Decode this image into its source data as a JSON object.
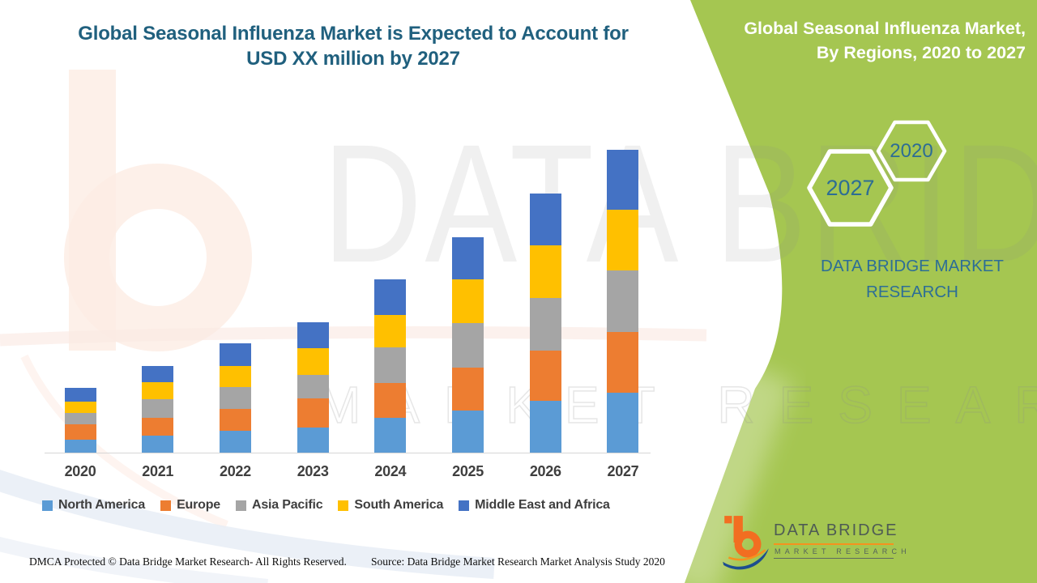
{
  "title": {
    "line1": "Global Seasonal Influenza Market is Expected to Account for",
    "line2": "USD XX million by 2027"
  },
  "side_panel": {
    "heading_line1": "Global Seasonal Influenza Market,",
    "heading_line2": "By Regions, 2020 to 2027",
    "hexagon_large_label": "2027",
    "hexagon_small_label": "2020",
    "brand_line1": "DATA BRIDGE MARKET",
    "brand_line2": "RESEARCH"
  },
  "logo": {
    "title": "DATA BRIDGE",
    "subtitle": "MARKET RESEARCH"
  },
  "watermark": {
    "line1": "DATA BRIDGE",
    "line2": "MARKET RESEARCH"
  },
  "footer": {
    "dmca": "DMCA Protected © Data Bridge Market Research- All Rights Reserved.",
    "source": "Source: Data Bridge Market Research Market Analysis Study 2020"
  },
  "colors": {
    "panel_green": "#a5c651",
    "title_teal": "#20607e",
    "hexagon_number_teal": "#2d6d94",
    "brand_teal": "#2d6e96",
    "axis_text": "#3f3f3f",
    "logo_orange": "#f26e21",
    "logo_blue": "#1d4e8f"
  },
  "chart_data": {
    "type": "bar",
    "stacked": true,
    "title": "Global Seasonal Influenza Market, By Regions, 2020 to 2027",
    "categories": [
      "2020",
      "2021",
      "2022",
      "2023",
      "2024",
      "2025",
      "2026",
      "2027"
    ],
    "series": [
      {
        "name": "North America",
        "color": "#5B9BD5",
        "values": [
          16,
          21,
          27,
          31,
          43,
          52,
          64,
          74
        ]
      },
      {
        "name": "Europe",
        "color": "#ED7D31",
        "values": [
          19,
          22,
          27,
          36,
          43,
          53,
          62,
          75
        ]
      },
      {
        "name": "Asia Pacific",
        "color": "#A5A5A5",
        "values": [
          14,
          23,
          27,
          29,
          44,
          55,
          65,
          76
        ]
      },
      {
        "name": "South America",
        "color": "#FFC000",
        "values": [
          14,
          21,
          26,
          33,
          40,
          54,
          65,
          75
        ]
      },
      {
        "name": "Middle East and Africa",
        "color": "#4472C4",
        "values": [
          17,
          20,
          28,
          32,
          44,
          52,
          64,
          74
        ]
      }
    ],
    "stack_order": "bottom-to-top follows series order",
    "value_axis_labeled": false,
    "units": "relative height (no value axis shown on chart)",
    "grid": false,
    "legend_position": "bottom"
  }
}
